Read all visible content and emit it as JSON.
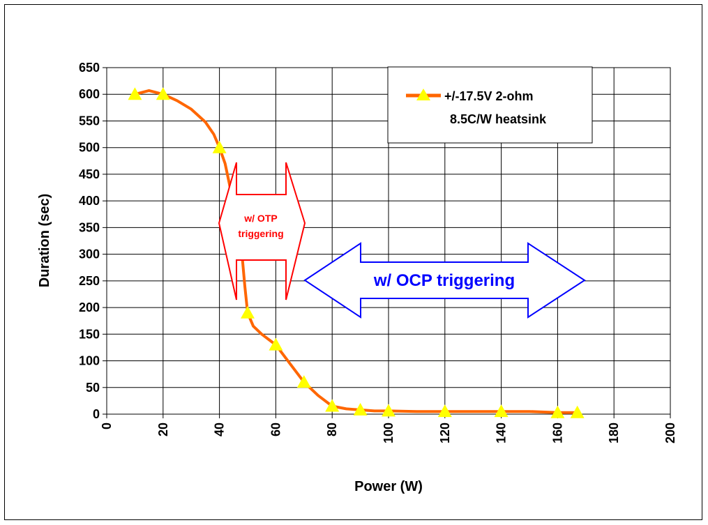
{
  "chart_data": {
    "type": "line",
    "xlabel": "Power (W)",
    "ylabel": "Duration (sec)",
    "xlim": [
      0,
      200
    ],
    "ylim": [
      0,
      650
    ],
    "x_ticks": [
      "0",
      "20",
      "40",
      "60",
      "80",
      "100",
      "120",
      "140",
      "160",
      "180",
      "200"
    ],
    "y_ticks": [
      "0",
      "50",
      "100",
      "150",
      "200",
      "250",
      "300",
      "350",
      "400",
      "450",
      "500",
      "550",
      "600",
      "650"
    ],
    "grid": true,
    "legend_position": "top-right",
    "series": [
      {
        "name": "+/-17.5V 2-ohm 8.5C/W heatsink",
        "name_lines": [
          "+/-17.5V 2-ohm",
          "8.5C/W heatsink"
        ],
        "color": "#ff6600",
        "marker_color": "#ffff00",
        "curve": [
          [
            10,
            600
          ],
          [
            15,
            607
          ],
          [
            20,
            600
          ],
          [
            25,
            588
          ],
          [
            30,
            572
          ],
          [
            35,
            548
          ],
          [
            38,
            525
          ],
          [
            40,
            500
          ],
          [
            42,
            470
          ],
          [
            44,
            420
          ],
          [
            46,
            360
          ],
          [
            48,
            300
          ],
          [
            49,
            240
          ],
          [
            50,
            190
          ],
          [
            52,
            165
          ],
          [
            55,
            150
          ],
          [
            58,
            138
          ],
          [
            60,
            130
          ],
          [
            65,
            95
          ],
          [
            70,
            60
          ],
          [
            75,
            35
          ],
          [
            80,
            15
          ],
          [
            85,
            10
          ],
          [
            90,
            8
          ],
          [
            95,
            6
          ],
          [
            100,
            6
          ],
          [
            110,
            5
          ],
          [
            120,
            5
          ],
          [
            140,
            5
          ],
          [
            150,
            5
          ],
          [
            160,
            3
          ],
          [
            167,
            3
          ]
        ],
        "points": [
          [
            10,
            600
          ],
          [
            20,
            600
          ],
          [
            40,
            500
          ],
          [
            50,
            190
          ],
          [
            60,
            130
          ],
          [
            70,
            60
          ],
          [
            80,
            15
          ],
          [
            90,
            8
          ],
          [
            100,
            6
          ],
          [
            120,
            5
          ],
          [
            140,
            5
          ],
          [
            160,
            3
          ],
          [
            167,
            3
          ]
        ]
      }
    ],
    "annotations": [
      {
        "text_lines": [
          "w/ OTP",
          "triggering"
        ],
        "color": "#ff0000",
        "x_range": [
          40,
          71
        ],
        "y": 330
      },
      {
        "text_lines": [
          "w/ OCP triggering"
        ],
        "color": "#0000ff",
        "x_range": [
          71,
          170
        ],
        "y": 250
      }
    ]
  }
}
